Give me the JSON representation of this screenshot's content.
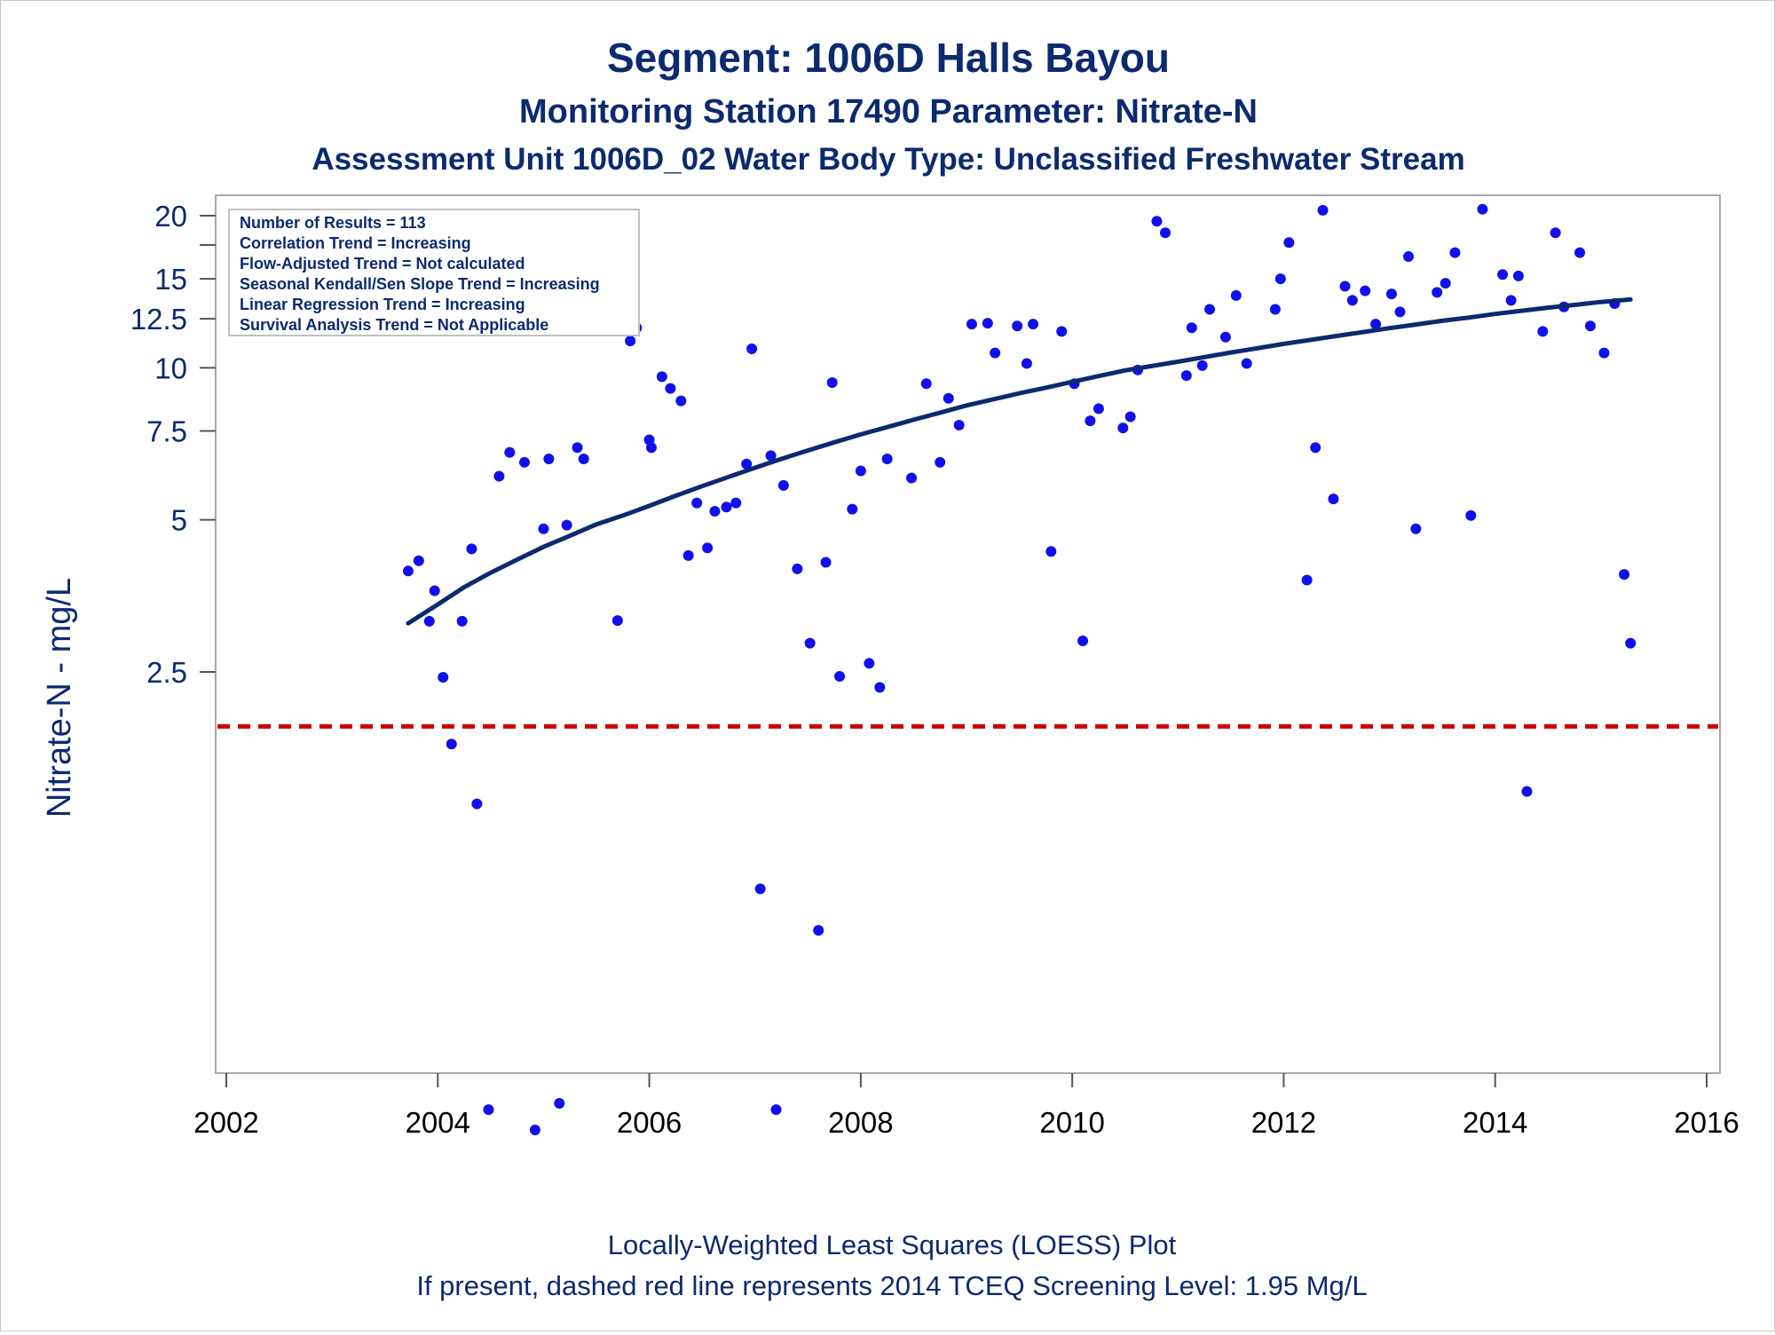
{
  "chart_data": {
    "type": "scatter",
    "title": "Segment: 1006D  Halls Bayou",
    "subtitle": "Monitoring Station 17490 Parameter: Nitrate-N",
    "subtitle2": "Assessment Unit 1006D_02   Water Body Type: Unclassified Freshwater Stream",
    "ylabel": "Nitrate-N - mg/L",
    "xlabel": "",
    "y_scale": "log",
    "xlim": [
      2002,
      2016
    ],
    "ylim": [
      0.3,
      21.5
    ],
    "x_ticks": [
      2002,
      2004,
      2006,
      2008,
      2010,
      2012,
      2014,
      2016
    ],
    "y_ticks": [
      {
        "value": 20,
        "label": "20"
      },
      {
        "value": 17.5,
        "label": ""
      },
      {
        "value": 15,
        "label": "15"
      },
      {
        "value": 12.5,
        "label": "12.5"
      },
      {
        "value": 10,
        "label": "10"
      },
      {
        "value": 7.5,
        "label": "7.5"
      },
      {
        "value": 5,
        "label": "5"
      },
      {
        "value": 2.5,
        "label": "2.5"
      }
    ],
    "legend_lines": [
      "Number of Results = 113",
      "Correlation Trend = Increasing",
      "Flow-Adjusted Trend = Not calculated",
      "Seasonal Kendall/Sen Slope Trend = Increasing",
      "Linear Regression Trend = Increasing",
      "Survival Analysis Trend = Not Applicable"
    ],
    "legend_placement": "top-left",
    "grid": false,
    "screening_level": 1.95,
    "colors": {
      "points": "#1010ee",
      "loess": "#0b2a6f",
      "screening": "#cc0000",
      "text": "#0b2a6f"
    },
    "points": [
      [
        2003.72,
        3.96
      ],
      [
        2003.82,
        4.15
      ],
      [
        2003.92,
        3.15
      ],
      [
        2003.97,
        3.62
      ],
      [
        2004.05,
        2.44
      ],
      [
        2004.13,
        1.8
      ],
      [
        2004.23,
        3.15
      ],
      [
        2004.32,
        4.38
      ],
      [
        2004.37,
        1.37
      ],
      [
        2004.48,
        0.34
      ],
      [
        2004.58,
        6.1
      ],
      [
        2004.68,
        6.8
      ],
      [
        2004.82,
        6.5
      ],
      [
        2004.92,
        0.31
      ],
      [
        2005.0,
        4.8
      ],
      [
        2005.05,
        6.6
      ],
      [
        2005.15,
        0.35
      ],
      [
        2005.22,
        4.88
      ],
      [
        2005.32,
        6.95
      ],
      [
        2005.38,
        6.6
      ],
      [
        2005.7,
        3.16
      ],
      [
        2005.82,
        11.3
      ],
      [
        2005.88,
        12.0
      ],
      [
        2006.0,
        7.2
      ],
      [
        2006.02,
        6.95
      ],
      [
        2006.12,
        9.6
      ],
      [
        2006.2,
        9.1
      ],
      [
        2006.3,
        8.6
      ],
      [
        2006.37,
        4.25
      ],
      [
        2006.45,
        5.4
      ],
      [
        2006.55,
        4.4
      ],
      [
        2006.62,
        5.2
      ],
      [
        2006.73,
        5.3
      ],
      [
        2006.82,
        5.4
      ],
      [
        2006.92,
        6.45
      ],
      [
        2006.97,
        10.9
      ],
      [
        2007.05,
        0.93
      ],
      [
        2007.15,
        6.7
      ],
      [
        2007.2,
        0.34
      ],
      [
        2007.27,
        5.85
      ],
      [
        2007.4,
        4.0
      ],
      [
        2007.52,
        2.85
      ],
      [
        2007.6,
        0.77
      ],
      [
        2007.67,
        4.12
      ],
      [
        2007.73,
        9.35
      ],
      [
        2007.8,
        2.45
      ],
      [
        2007.92,
        5.25
      ],
      [
        2008.0,
        6.25
      ],
      [
        2008.08,
        2.6
      ],
      [
        2008.18,
        2.33
      ],
      [
        2008.25,
        6.6
      ],
      [
        2008.48,
        6.05
      ],
      [
        2008.62,
        9.3
      ],
      [
        2008.75,
        6.5
      ],
      [
        2008.83,
        8.7
      ],
      [
        2008.93,
        7.7
      ],
      [
        2009.05,
        12.2
      ],
      [
        2009.2,
        12.25
      ],
      [
        2009.27,
        10.7
      ],
      [
        2009.48,
        12.1
      ],
      [
        2009.57,
        10.2
      ],
      [
        2009.63,
        12.2
      ],
      [
        2009.8,
        4.33
      ],
      [
        2009.9,
        11.8
      ],
      [
        2010.02,
        9.3
      ],
      [
        2010.1,
        2.88
      ],
      [
        2010.17,
        7.85
      ],
      [
        2010.25,
        8.3
      ],
      [
        2010.48,
        7.6
      ],
      [
        2010.55,
        8.0
      ],
      [
        2010.62,
        9.9
      ],
      [
        2010.8,
        19.5
      ],
      [
        2010.88,
        18.5
      ],
      [
        2011.08,
        9.65
      ],
      [
        2011.13,
        12.0
      ],
      [
        2011.23,
        10.1
      ],
      [
        2011.3,
        13.05
      ],
      [
        2011.45,
        11.5
      ],
      [
        2011.55,
        13.9
      ],
      [
        2011.65,
        10.2
      ],
      [
        2011.92,
        13.05
      ],
      [
        2011.97,
        15.0
      ],
      [
        2012.05,
        17.7
      ],
      [
        2012.22,
        3.8
      ],
      [
        2012.3,
        6.95
      ],
      [
        2012.37,
        20.5
      ],
      [
        2012.47,
        5.5
      ],
      [
        2012.58,
        14.5
      ],
      [
        2012.65,
        13.6
      ],
      [
        2012.77,
        14.2
      ],
      [
        2012.87,
        12.2
      ],
      [
        2013.02,
        14.0
      ],
      [
        2013.1,
        12.9
      ],
      [
        2013.18,
        16.6
      ],
      [
        2013.25,
        4.8
      ],
      [
        2013.45,
        14.1
      ],
      [
        2013.53,
        14.7
      ],
      [
        2013.62,
        16.9
      ],
      [
        2013.77,
        5.1
      ],
      [
        2013.88,
        20.6
      ],
      [
        2014.07,
        15.3
      ],
      [
        2014.15,
        13.6
      ],
      [
        2014.22,
        15.2
      ],
      [
        2014.3,
        1.45
      ],
      [
        2014.45,
        11.8
      ],
      [
        2014.57,
        18.5
      ],
      [
        2014.65,
        13.2
      ],
      [
        2014.8,
        16.9
      ],
      [
        2014.9,
        12.1
      ],
      [
        2015.03,
        10.7
      ],
      [
        2015.13,
        13.4
      ],
      [
        2015.22,
        3.9
      ],
      [
        2015.28,
        2.85
      ]
    ],
    "loess": [
      [
        2003.72,
        3.12
      ],
      [
        2004.0,
        3.4
      ],
      [
        2004.25,
        3.68
      ],
      [
        2004.5,
        3.93
      ],
      [
        2004.75,
        4.17
      ],
      [
        2005.0,
        4.42
      ],
      [
        2005.25,
        4.65
      ],
      [
        2005.5,
        4.9
      ],
      [
        2005.75,
        5.1
      ],
      [
        2006.0,
        5.33
      ],
      [
        2006.25,
        5.58
      ],
      [
        2006.5,
        5.83
      ],
      [
        2006.75,
        6.08
      ],
      [
        2007.0,
        6.34
      ],
      [
        2007.25,
        6.6
      ],
      [
        2007.5,
        6.86
      ],
      [
        2007.75,
        7.12
      ],
      [
        2008.0,
        7.38
      ],
      [
        2008.25,
        7.63
      ],
      [
        2008.5,
        7.89
      ],
      [
        2008.75,
        8.15
      ],
      [
        2009.0,
        8.42
      ],
      [
        2009.25,
        8.66
      ],
      [
        2009.5,
        8.9
      ],
      [
        2009.75,
        9.13
      ],
      [
        2010.0,
        9.38
      ],
      [
        2010.25,
        9.63
      ],
      [
        2010.5,
        9.88
      ],
      [
        2010.75,
        10.08
      ],
      [
        2011.0,
        10.28
      ],
      [
        2011.25,
        10.5
      ],
      [
        2011.5,
        10.72
      ],
      [
        2011.75,
        10.93
      ],
      [
        2012.0,
        11.15
      ],
      [
        2012.25,
        11.35
      ],
      [
        2012.5,
        11.56
      ],
      [
        2012.75,
        11.77
      ],
      [
        2013.0,
        11.98
      ],
      [
        2013.25,
        12.18
      ],
      [
        2013.5,
        12.39
      ],
      [
        2013.75,
        12.57
      ],
      [
        2014.0,
        12.78
      ],
      [
        2014.25,
        12.97
      ],
      [
        2014.5,
        13.15
      ],
      [
        2014.75,
        13.32
      ],
      [
        2015.0,
        13.5
      ],
      [
        2015.28,
        13.65
      ]
    ],
    "footnote1": "Locally-Weighted Least Squares (LOESS) Plot",
    "footnote2": "If present, dashed red line represents 2014 TCEQ Screening Level: 1.95 Mg/L"
  }
}
